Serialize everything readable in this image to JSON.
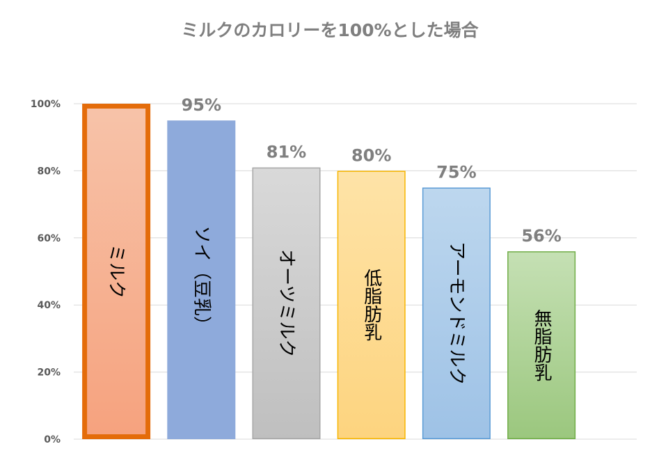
{
  "chart_data": {
    "type": "bar",
    "title": "ミルクのカロリーを100%とした場合",
    "xlabel": "",
    "ylabel": "",
    "ylim": [
      0,
      100
    ],
    "y_ticks": [
      {
        "value": 0,
        "label": "0%"
      },
      {
        "value": 20,
        "label": "20%"
      },
      {
        "value": 40,
        "label": "40%"
      },
      {
        "value": 60,
        "label": "60%"
      },
      {
        "value": 80,
        "label": "80%"
      },
      {
        "value": 100,
        "label": "100%"
      }
    ],
    "grid": true,
    "legend": "none",
    "categories": [
      "ミルク",
      "ソイ（豆乳）",
      "オーツミルク",
      "低脂肪乳",
      "アーモンドミルク",
      "無脂肪乳"
    ],
    "values": [
      100,
      95,
      81,
      80,
      75,
      56
    ],
    "data_labels": [
      "",
      "95%",
      "81%",
      "80%",
      "75%",
      "56%"
    ],
    "label_style": [
      "vertical",
      "vertical",
      "vertical",
      "stacked",
      "vertical",
      "stacked"
    ],
    "bars": [
      {
        "fill_top": "#f7c3a9",
        "fill_bottom": "#f6a27e",
        "stroke": "#e46c0a",
        "highlight": true
      },
      {
        "fill_top": "#8eaadb",
        "fill_bottom": "#8eaadb",
        "stroke": "#8eaadb",
        "highlight": false
      },
      {
        "fill_top": "#d9d9d9",
        "fill_bottom": "#bfbfbf",
        "stroke": "#a6a6a6",
        "highlight": false
      },
      {
        "fill_top": "#fee3a7",
        "fill_bottom": "#fdd47f",
        "stroke": "#f7b500",
        "highlight": false
      },
      {
        "fill_top": "#bdd7ee",
        "fill_bottom": "#9ec2e6",
        "stroke": "#5b9bd5",
        "highlight": false
      },
      {
        "fill_top": "#c5e0b4",
        "fill_bottom": "#9bc77e",
        "stroke": "#70ad47",
        "highlight": false
      }
    ]
  }
}
